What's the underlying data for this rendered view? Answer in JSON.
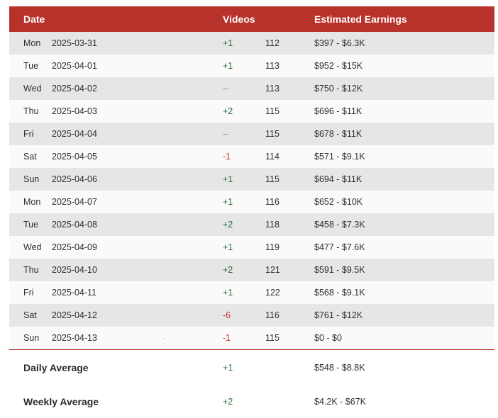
{
  "header": {
    "date": "Date",
    "videos": "Videos",
    "earnings": "Estimated Earnings"
  },
  "rows": [
    {
      "day": "Mon",
      "date": "2025-03-31",
      "delta": "+1",
      "delta_type": "pos",
      "total": "112",
      "earnings": "$397 - $6.3K"
    },
    {
      "day": "Tue",
      "date": "2025-04-01",
      "delta": "+1",
      "delta_type": "pos",
      "total": "113",
      "earnings": "$952 - $15K"
    },
    {
      "day": "Wed",
      "date": "2025-04-02",
      "delta": "--",
      "delta_type": "neu",
      "total": "113",
      "earnings": "$750 - $12K"
    },
    {
      "day": "Thu",
      "date": "2025-04-03",
      "delta": "+2",
      "delta_type": "pos",
      "total": "115",
      "earnings": "$696 - $11K"
    },
    {
      "day": "Fri",
      "date": "2025-04-04",
      "delta": "--",
      "delta_type": "neu",
      "total": "115",
      "earnings": "$678 - $11K"
    },
    {
      "day": "Sat",
      "date": "2025-04-05",
      "delta": "-1",
      "delta_type": "neg",
      "total": "114",
      "earnings": "$571 - $9.1K"
    },
    {
      "day": "Sun",
      "date": "2025-04-06",
      "delta": "+1",
      "delta_type": "pos",
      "total": "115",
      "earnings": "$694 - $11K"
    },
    {
      "day": "Mon",
      "date": "2025-04-07",
      "delta": "+1",
      "delta_type": "pos",
      "total": "116",
      "earnings": "$652 - $10K"
    },
    {
      "day": "Tue",
      "date": "2025-04-08",
      "delta": "+2",
      "delta_type": "pos",
      "total": "118",
      "earnings": "$458 - $7.3K"
    },
    {
      "day": "Wed",
      "date": "2025-04-09",
      "delta": "+1",
      "delta_type": "pos",
      "total": "119",
      "earnings": "$477 - $7.6K"
    },
    {
      "day": "Thu",
      "date": "2025-04-10",
      "delta": "+2",
      "delta_type": "pos",
      "total": "121",
      "earnings": "$591 - $9.5K"
    },
    {
      "day": "Fri",
      "date": "2025-04-11",
      "delta": "+1",
      "delta_type": "pos",
      "total": "122",
      "earnings": "$568 - $9.1K"
    },
    {
      "day": "Sat",
      "date": "2025-04-12",
      "delta": "-6",
      "delta_type": "neg",
      "total": "116",
      "earnings": "$761 - $12K"
    },
    {
      "day": "Sun",
      "date": "2025-04-13",
      "delta": "-1",
      "delta_type": "neg",
      "total": "115",
      "earnings": "$0 - $0"
    }
  ],
  "summary": {
    "daily": {
      "label": "Daily Average",
      "delta": "+1",
      "earnings": "$548 - $8.8K"
    },
    "weekly": {
      "label": "Weekly Average",
      "delta": "+2",
      "earnings": "$4.2K - $67K"
    }
  },
  "colors": {
    "header_bg": "#b7322a",
    "positive": "#2e6b3a",
    "negative": "#c0392b",
    "neutral": "#8a8a8a",
    "row_shade": "#e6e6e6"
  }
}
